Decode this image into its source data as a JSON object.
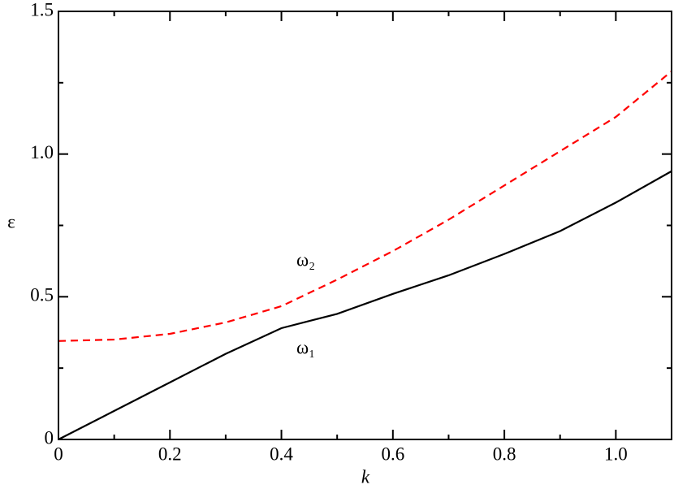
{
  "chart_data": {
    "type": "line",
    "xlabel": "k",
    "ylabel": "ε",
    "x": [
      0,
      0.1,
      0.2,
      0.3,
      0.4,
      0.5,
      0.6,
      0.7,
      0.8,
      0.9,
      1.0,
      1.1
    ],
    "series": [
      {
        "name": "ω₁",
        "color": "#000000",
        "dash": false,
        "values": [
          0,
          0.1,
          0.2,
          0.3,
          0.39,
          0.44,
          0.51,
          0.575,
          0.65,
          0.73,
          0.83,
          0.94
        ]
      },
      {
        "name": "ω₂",
        "color": "#ff0000",
        "dash": true,
        "values": [
          0.345,
          0.35,
          0.37,
          0.41,
          0.467,
          0.56,
          0.66,
          0.77,
          0.89,
          1.01,
          1.13,
          1.29
        ]
      }
    ],
    "xlim": [
      0,
      1.1
    ],
    "ylim": [
      0,
      1.5
    ],
    "xticks": [
      0,
      0.2,
      0.4,
      0.6,
      0.8,
      {
        "value": 1,
        "label": "1.0"
      }
    ],
    "yticks": [
      0,
      0.5,
      {
        "value": 1,
        "label": "1.0"
      },
      1.5
    ],
    "grid": false
  }
}
